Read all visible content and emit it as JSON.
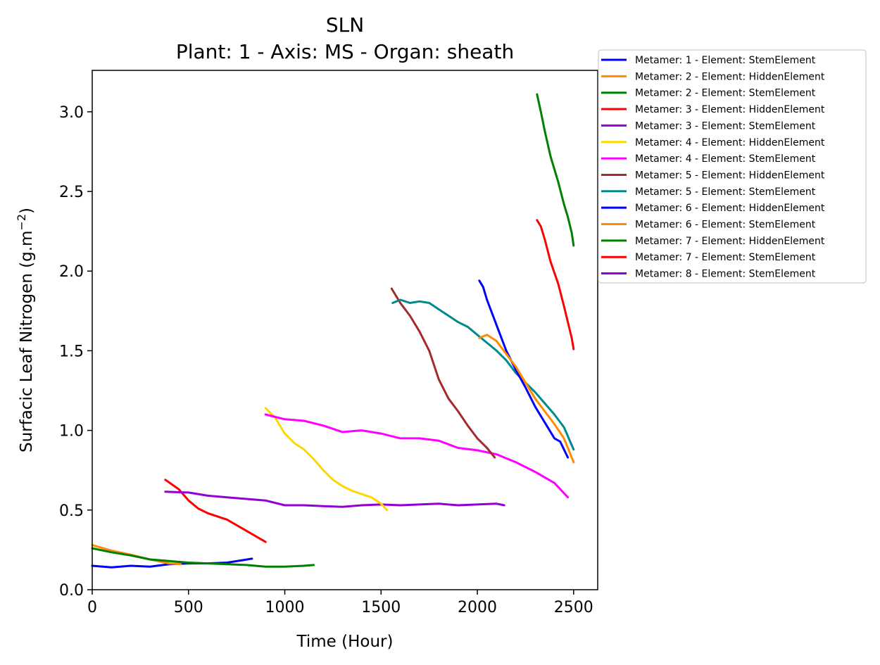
{
  "chart_data": {
    "type": "line",
    "title": "SLN",
    "subtitle": "Plant: 1 - Axis: MS - Organ: sheath",
    "xlabel": "Time (Hour)",
    "ylabel_main": "Surfacic Leaf Nitrogen (g.m",
    "ylabel_sup": "−2",
    "ylabel_tail": ")",
    "xlim": [
      0,
      2625
    ],
    "ylim": [
      0,
      3.26
    ],
    "x_ticks": [
      0,
      500,
      1000,
      1500,
      2000,
      2500
    ],
    "x_tick_labels": [
      "0",
      "500",
      "1000",
      "1500",
      "2000",
      "2500"
    ],
    "y_ticks": [
      0,
      0.5,
      1,
      1.5,
      2,
      2.5,
      3
    ],
    "y_tick_labels": [
      "0.0",
      "0.5",
      "1.0",
      "1.5",
      "2.0",
      "2.5",
      "3.0"
    ],
    "grid": false,
    "legend_position": "outside-top-right",
    "series": [
      {
        "name": "Metamer: 1 - Element: StemElement",
        "color": "#0000ff",
        "x": [
          0,
          100,
          200,
          300,
          400,
          500,
          600,
          700,
          780,
          830
        ],
        "y": [
          0.15,
          0.14,
          0.15,
          0.145,
          0.16,
          0.165,
          0.165,
          0.17,
          0.185,
          0.195
        ]
      },
      {
        "name": "Metamer: 2 - Element: HiddenElement",
        "color": "#ff8c00",
        "x": [
          0,
          100,
          200,
          300,
          400,
          460
        ],
        "y": [
          0.28,
          0.245,
          0.22,
          0.19,
          0.165,
          0.16
        ]
      },
      {
        "name": "Metamer: 2 - Element: StemElement",
        "color": "#008000",
        "x": [
          0,
          100,
          200,
          300,
          400,
          500,
          600,
          700,
          800,
          900,
          1000,
          1100,
          1150
        ],
        "y": [
          0.26,
          0.235,
          0.215,
          0.19,
          0.18,
          0.17,
          0.165,
          0.16,
          0.155,
          0.145,
          0.145,
          0.15,
          0.155
        ]
      },
      {
        "name": "Metamer: 3 - Element: HiddenElement",
        "color": "#ff0000",
        "x": [
          380,
          450,
          500,
          550,
          600,
          700,
          800,
          900
        ],
        "y": [
          0.69,
          0.63,
          0.56,
          0.51,
          0.48,
          0.44,
          0.37,
          0.3
        ]
      },
      {
        "name": "Metamer: 3 - Element: StemElement",
        "color": "#9400d3",
        "x": [
          380,
          500,
          600,
          700,
          800,
          900,
          1000,
          1100,
          1200,
          1300,
          1400,
          1500,
          1600,
          1700,
          1800,
          1900,
          2000,
          2100,
          2140
        ],
        "y": [
          0.615,
          0.61,
          0.59,
          0.58,
          0.57,
          0.56,
          0.53,
          0.53,
          0.525,
          0.52,
          0.53,
          0.535,
          0.53,
          0.535,
          0.54,
          0.53,
          0.535,
          0.54,
          0.53
        ]
      },
      {
        "name": "Metamer: 4 - Element: HiddenElement",
        "color": "#ffd700",
        "x": [
          900,
          950,
          1000,
          1050,
          1100,
          1150,
          1200,
          1250,
          1300,
          1350,
          1400,
          1450,
          1500,
          1530
        ],
        "y": [
          1.14,
          1.08,
          0.98,
          0.92,
          0.88,
          0.82,
          0.75,
          0.69,
          0.65,
          0.62,
          0.6,
          0.58,
          0.54,
          0.5
        ]
      },
      {
        "name": "Metamer: 4 - Element: StemElement",
        "color": "#ff00ff",
        "x": [
          900,
          1000,
          1100,
          1200,
          1300,
          1400,
          1500,
          1600,
          1700,
          1800,
          1900,
          2000,
          2100,
          2200,
          2300,
          2400,
          2470
        ],
        "y": [
          1.1,
          1.07,
          1.06,
          1.03,
          0.99,
          1.0,
          0.98,
          0.95,
          0.95,
          0.935,
          0.89,
          0.875,
          0.85,
          0.8,
          0.74,
          0.67,
          0.58
        ]
      },
      {
        "name": "Metamer: 5 - Element: HiddenElement",
        "color": "#a52a2a",
        "x": [
          1555,
          1600,
          1650,
          1700,
          1750,
          1800,
          1850,
          1900,
          1950,
          2000,
          2050,
          2090
        ],
        "y": [
          1.89,
          1.8,
          1.72,
          1.62,
          1.5,
          1.32,
          1.2,
          1.12,
          1.03,
          0.95,
          0.89,
          0.83
        ]
      },
      {
        "name": "Metamer: 5 - Element: StemElement",
        "color": "#008b8b",
        "x": [
          1560,
          1600,
          1650,
          1700,
          1750,
          1800,
          1850,
          1900,
          1950,
          2000,
          2050,
          2100,
          2150,
          2200,
          2250,
          2300,
          2350,
          2400,
          2450,
          2500
        ],
        "y": [
          1.8,
          1.82,
          1.8,
          1.81,
          1.8,
          1.76,
          1.72,
          1.68,
          1.65,
          1.6,
          1.55,
          1.5,
          1.44,
          1.36,
          1.3,
          1.24,
          1.17,
          1.1,
          1.02,
          0.88
        ]
      },
      {
        "name": "Metamer: 6 - Element: HiddenElement",
        "color": "#0000ff",
        "x": [
          2010,
          2030,
          2050,
          2100,
          2150,
          2200,
          2250,
          2300,
          2350,
          2400,
          2430,
          2470
        ],
        "y": [
          1.94,
          1.9,
          1.82,
          1.66,
          1.5,
          1.38,
          1.27,
          1.15,
          1.05,
          0.95,
          0.93,
          0.83
        ]
      },
      {
        "name": "Metamer: 6 - Element: StemElement",
        "color": "#ff8c00",
        "x": [
          2010,
          2050,
          2100,
          2150,
          2200,
          2250,
          2300,
          2350,
          2400,
          2450,
          2500
        ],
        "y": [
          1.58,
          1.6,
          1.56,
          1.48,
          1.4,
          1.3,
          1.2,
          1.12,
          1.04,
          0.95,
          0.8
        ]
      },
      {
        "name": "Metamer: 7 - Element: HiddenElement",
        "color": "#008000",
        "x": [
          2310,
          2330,
          2350,
          2380,
          2420,
          2450,
          2470,
          2490,
          2500
        ],
        "y": [
          3.11,
          3.0,
          2.88,
          2.72,
          2.56,
          2.42,
          2.34,
          2.24,
          2.16
        ]
      },
      {
        "name": "Metamer: 7 - Element: StemElement",
        "color": "#ff0000",
        "x": [
          2310,
          2330,
          2350,
          2380,
          2420,
          2450,
          2470,
          2490,
          2500
        ],
        "y": [
          2.32,
          2.28,
          2.2,
          2.06,
          1.92,
          1.78,
          1.68,
          1.58,
          1.51
        ]
      },
      {
        "name": "Metamer: 8 - Element: StemElement",
        "color": "#9400d3",
        "x": [],
        "y": []
      }
    ]
  }
}
